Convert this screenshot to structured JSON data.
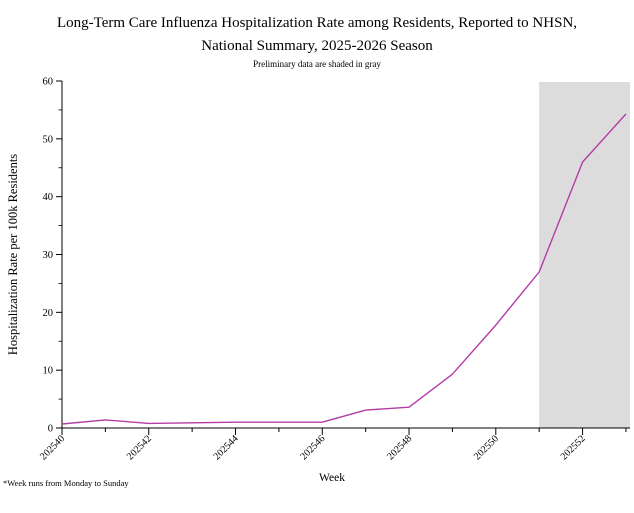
{
  "page": {
    "title_line1": "Long-Term Care Influenza Hospitalization Rate among Residents, Reported to NHSN,",
    "title_line2": "National Summary, 2025-2026 Season",
    "subtitle": "Preliminary data are shaded in gray",
    "footnote": "*Week runs from Monday to Sunday"
  },
  "chart_data": {
    "type": "line",
    "title": "Long-Term Care Influenza Hospitalization Rate among Residents, Reported to NHSN, National Summary, 2025-2026 Season",
    "subtitle": "Preliminary data are shaded in gray",
    "xlabel": "Week",
    "ylabel": "Hospitalization Rate per 100k Residents",
    "x": [
      202540,
      202541,
      202542,
      202543,
      202544,
      202545,
      202546,
      202547,
      202548,
      202549,
      202550,
      202551,
      202552,
      202553
    ],
    "values": [
      0.7,
      1.4,
      0.8,
      0.9,
      1.0,
      1.0,
      1.0,
      3.1,
      3.6,
      9.3,
      17.8,
      27.0,
      46.0,
      54.3
    ],
    "ylim": [
      0,
      60
    ],
    "yticks": [
      0,
      10,
      20,
      30,
      40,
      50,
      60
    ],
    "yticks_minor": [
      5,
      15,
      25,
      35,
      45,
      55
    ],
    "xticks_labeled": [
      202540,
      202542,
      202544,
      202546,
      202548,
      202550,
      202552
    ],
    "grid": false,
    "legend": null,
    "line_color": "#b53ca6",
    "axis_color": "#000000",
    "preliminary_region": {
      "start_week": 202551,
      "note": "Preliminary data are shaded in gray",
      "fill": "#dcdcdc"
    }
  }
}
